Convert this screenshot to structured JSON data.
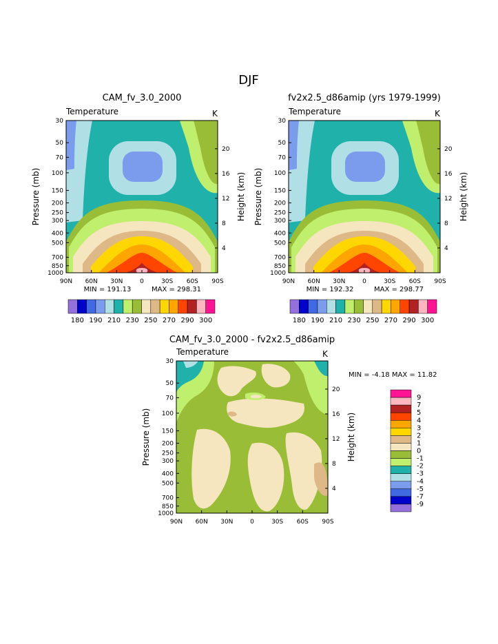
{
  "figure": {
    "season_title": "DJF"
  },
  "colors": {
    "fill_scale": [
      "#9370DB",
      "#0000CD",
      "#4169E1",
      "#7B9BED",
      "#B0E0E6",
      "#20B2AA",
      "#BFEF6C",
      "#9ABD37",
      "#F5E6C0",
      "#DEB887",
      "#FFD700",
      "#FFA500",
      "#FF4500",
      "#B22222",
      "#FFB6C1",
      "#FF1493"
    ],
    "diff_scale": [
      "#9370DB",
      "#0000CD",
      "#4169E1",
      "#7B9BED",
      "#B0E0E6",
      "#20B2AA",
      "#BFEF6C",
      "#9ABD37",
      "#F5E6C0",
      "#DEB887",
      "#FFD700",
      "#FFA500",
      "#FF4500",
      "#B22222",
      "#FFB6C1",
      "#FF1493"
    ]
  },
  "chart_data": [
    {
      "type": "heatmap",
      "panel": "model",
      "title": "CAM_fv_3.0_2000",
      "variable": "Temperature",
      "units": "K",
      "x_ticks": [
        "90N",
        "60N",
        "30N",
        "0",
        "30S",
        "60S",
        "90S"
      ],
      "y_ticks": [
        "30",
        "50",
        "70",
        "100",
        "150",
        "200",
        "250",
        "300",
        "400",
        "500",
        "700",
        "850",
        "1000"
      ],
      "ylabel": "Pressure (mb)",
      "y2_ticks": [
        "20",
        "16",
        "12",
        "8",
        "4"
      ],
      "y2label": "Height (km)",
      "min_text": "MIN = 191.13",
      "max_text": "MAX = 298.31",
      "colorbar_labels": [
        "180",
        "190",
        "210",
        "230",
        "250",
        "270",
        "290",
        "300"
      ]
    },
    {
      "type": "heatmap",
      "panel": "obs",
      "title": "fv2x2.5_d86amip (yrs 1979-1999)",
      "variable": "Temperature",
      "units": "K",
      "x_ticks": [
        "90N",
        "60N",
        "30N",
        "0",
        "30S",
        "60S",
        "90S"
      ],
      "y_ticks": [
        "30",
        "50",
        "70",
        "100",
        "150",
        "200",
        "250",
        "300",
        "400",
        "500",
        "700",
        "850",
        "1000"
      ],
      "ylabel": "Pressure (mb)",
      "y2_ticks": [
        "20",
        "16",
        "12",
        "8",
        "4"
      ],
      "y2label": "Height (km)",
      "min_text": "MIN = 192.32",
      "max_text": "MAX = 298.77",
      "colorbar_labels": [
        "180",
        "190",
        "210",
        "230",
        "250",
        "270",
        "290",
        "300"
      ]
    },
    {
      "type": "heatmap",
      "panel": "difference",
      "title": "CAM_fv_3.0_2000 - fv2x2.5_d86amip",
      "variable": "Temperature",
      "units": "K",
      "x_ticks": [
        "90N",
        "60N",
        "30N",
        "0",
        "30S",
        "60S",
        "90S"
      ],
      "y_ticks": [
        "30",
        "50",
        "70",
        "100",
        "150",
        "200",
        "250",
        "300",
        "400",
        "500",
        "700",
        "850",
        "1000"
      ],
      "ylabel": "Pressure (mb)",
      "y2_ticks": [
        "20",
        "16",
        "12",
        "8",
        "4"
      ],
      "y2label": "Height (km)",
      "minmax_text": "MIN =   -4.18   MAX =   11.82",
      "colorbar_labels": [
        "9",
        "7",
        "5",
        "4",
        "3",
        "2",
        "1",
        "0",
        "-1",
        "-2",
        "-3",
        "-4",
        "-5",
        "-7",
        "-9"
      ]
    }
  ]
}
